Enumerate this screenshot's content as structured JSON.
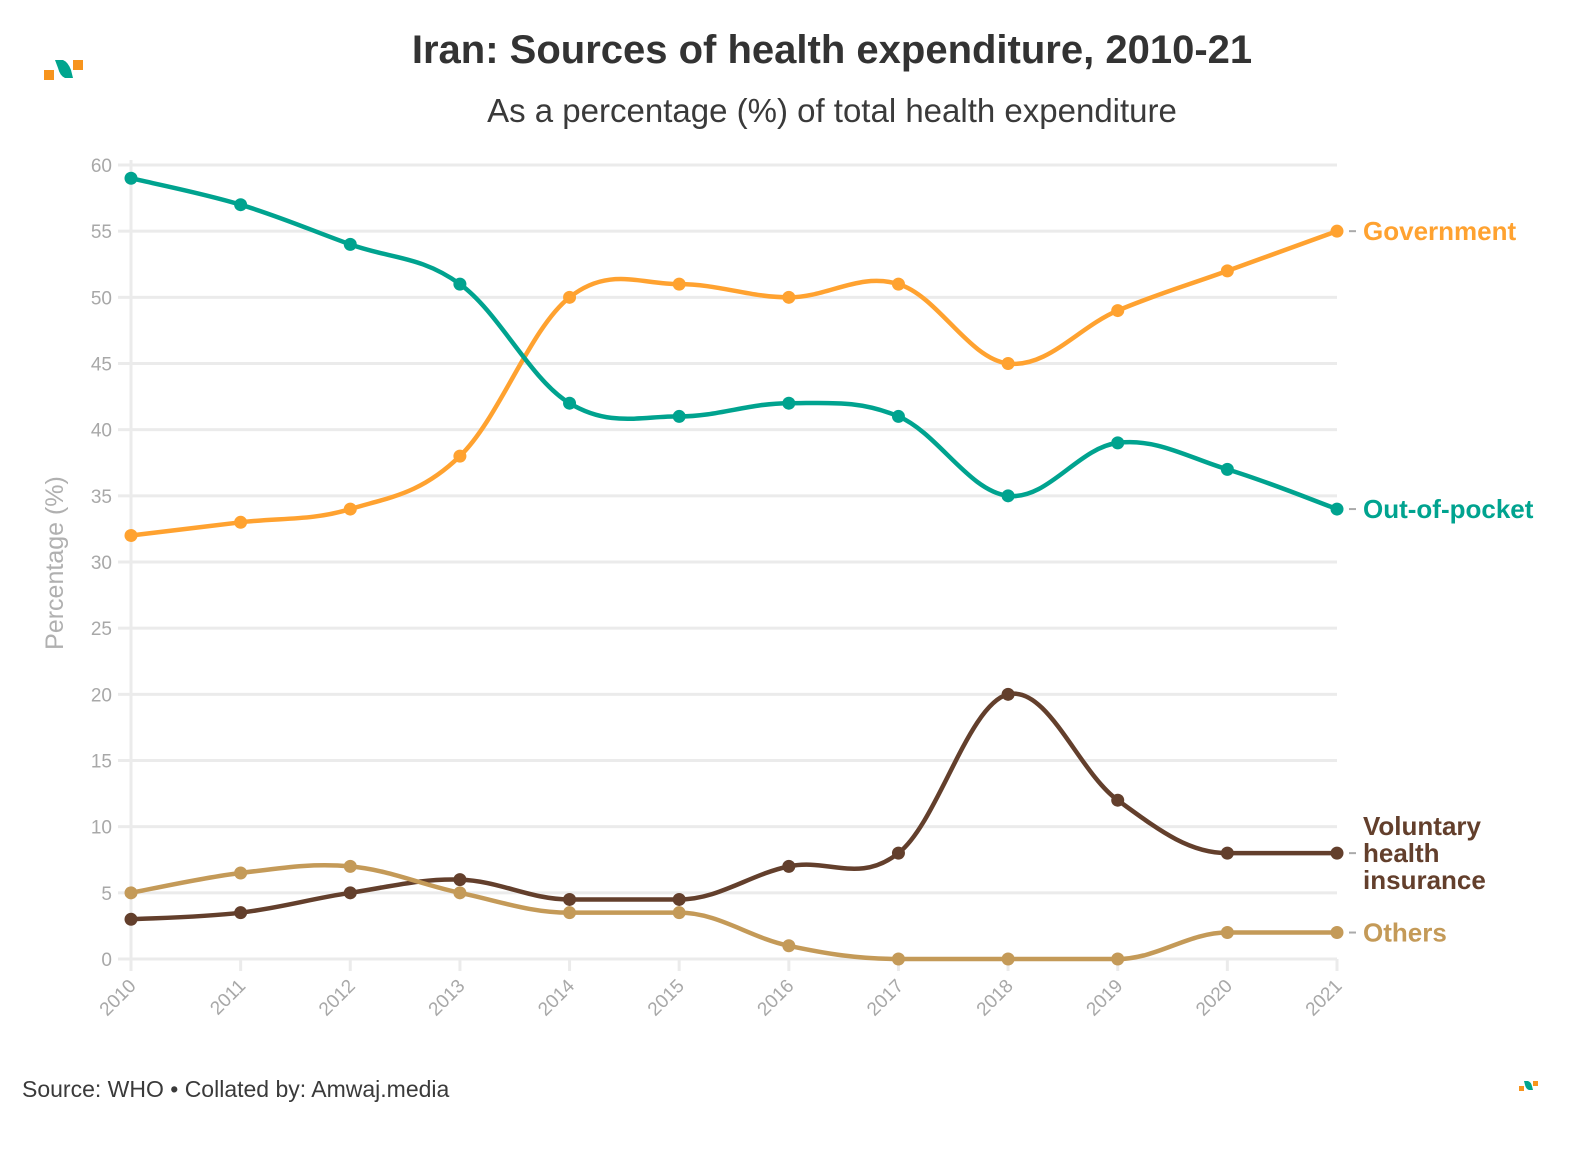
{
  "header": {
    "title": "Iran: Sources of health expenditure, 2010-21",
    "subtitle": "As a percentage (%) of total health expenditure"
  },
  "footer": {
    "source": "Source: WHO • Collated by: Amwaj.media"
  },
  "logo": {
    "name": "amwaj-logo",
    "colors": {
      "accent_orange": "#F7941D",
      "accent_teal": "#00A58E"
    }
  },
  "chart_data": {
    "type": "line",
    "title": "Iran: Sources of health expenditure, 2010-21",
    "subtitle": "As a percentage (%) of total health expenditure",
    "xlabel": "",
    "ylabel": "Percentage (%)",
    "x": [
      "2010",
      "2011",
      "2012",
      "2013",
      "2014",
      "2015",
      "2016",
      "2017",
      "2018",
      "2019",
      "2020",
      "2021"
    ],
    "ylim": [
      0,
      60
    ],
    "yticks": [
      0,
      5,
      10,
      15,
      20,
      25,
      30,
      35,
      40,
      45,
      50,
      55,
      60
    ],
    "grid": true,
    "legend": "direct labels at right end of lines",
    "series": [
      {
        "name": "Government",
        "label": "Government",
        "color": "#FFA230",
        "values": [
          32,
          33,
          34,
          38,
          50,
          51,
          50,
          51,
          45,
          49,
          52,
          55
        ]
      },
      {
        "name": "Out-of-pocket",
        "label": "Out-of-pocket",
        "color": "#00A38F",
        "values": [
          59,
          57,
          54,
          51,
          42,
          41,
          42,
          41,
          35,
          39,
          37,
          34
        ]
      },
      {
        "name": "Voluntary health insurance",
        "label": "Voluntary health insurance",
        "label_lines": [
          "Voluntary",
          "health",
          "insurance"
        ],
        "color": "#633F2C",
        "values": [
          3,
          3.5,
          5,
          6,
          4.5,
          4.5,
          7,
          8,
          20,
          12,
          8,
          8
        ]
      },
      {
        "name": "Others",
        "label": "Others",
        "color": "#C49A58",
        "values": [
          5,
          6.5,
          7,
          5,
          3.5,
          3.5,
          1,
          0,
          0,
          0,
          2,
          2
        ]
      }
    ]
  }
}
